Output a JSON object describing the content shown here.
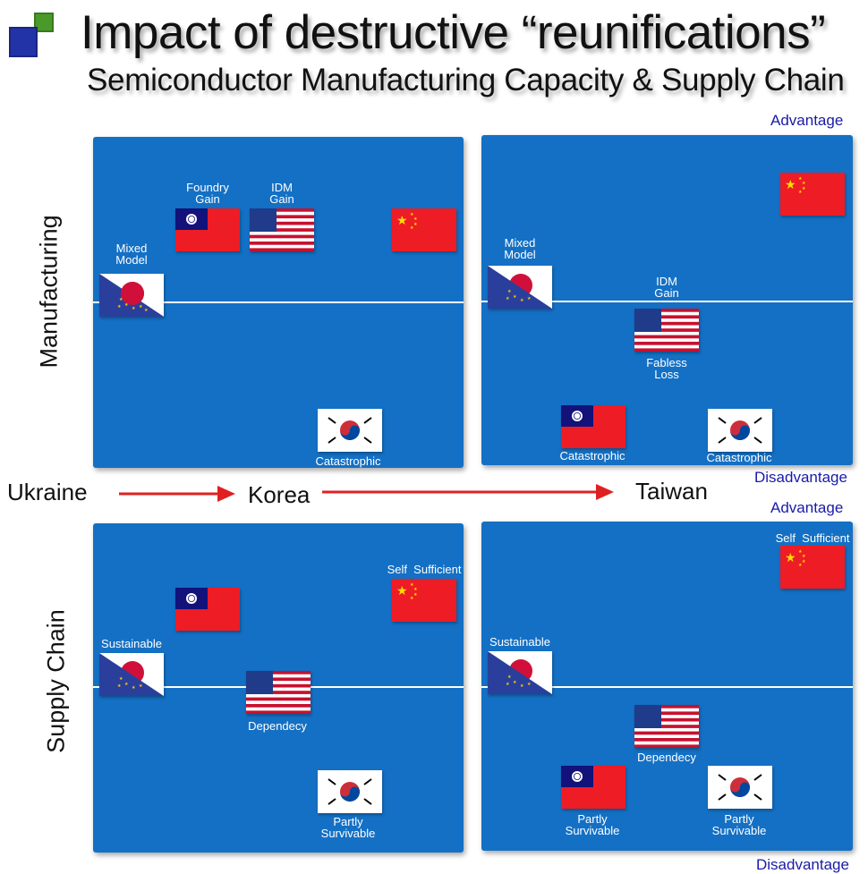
{
  "header": {
    "title": "Impact of destructive “reunifications”",
    "subtitle": "Semiconductor Manufacturing Capacity & Supply Chain"
  },
  "axes": {
    "row1": "Manufacturing",
    "row2": "Supply Chain"
  },
  "scale": {
    "advantage": "Advantage",
    "disadvantage": "Disadvantage"
  },
  "timeline": {
    "ukraine": "Ukraine",
    "korea": "Korea",
    "taiwan": "Taiwan"
  },
  "panels": {
    "korea_manufacturing": {
      "mixed_model": "Mixed\nModel",
      "foundry_gain": "Foundry\nGain",
      "idm_gain": "IDM\nGain",
      "catastrophic": "Catastrophic"
    },
    "taiwan_manufacturing": {
      "mixed_model": "Mixed\nModel",
      "idm_gain": "IDM\nGain",
      "fabless_loss": "Fabless\nLoss",
      "catastrophic_tw": "Catastrophic",
      "catastrophic_kr": "Catastrophic"
    },
    "korea_supply": {
      "self_sufficient": "Self  Sufficient",
      "sustainable": "Sustainable",
      "dependecy": "Dependecy",
      "partly_survivable": "Partly\nSurvivable"
    },
    "taiwan_supply": {
      "self_sufficient": "Self  Sufficient",
      "sustainable": "Sustainable",
      "dependecy": "Dependecy",
      "partly_survivable_tw": "Partly\nSurvivable",
      "partly_survivable_kr": "Partly\nSurvivable"
    }
  },
  "flags": [
    "taiwan-flag",
    "usa-flag",
    "china-flag",
    "japan-eu-flag",
    "korea-flag"
  ],
  "colors": {
    "panel": "#1470c4",
    "arrow": "#e02020",
    "scale_text": "#1a1aa8"
  }
}
